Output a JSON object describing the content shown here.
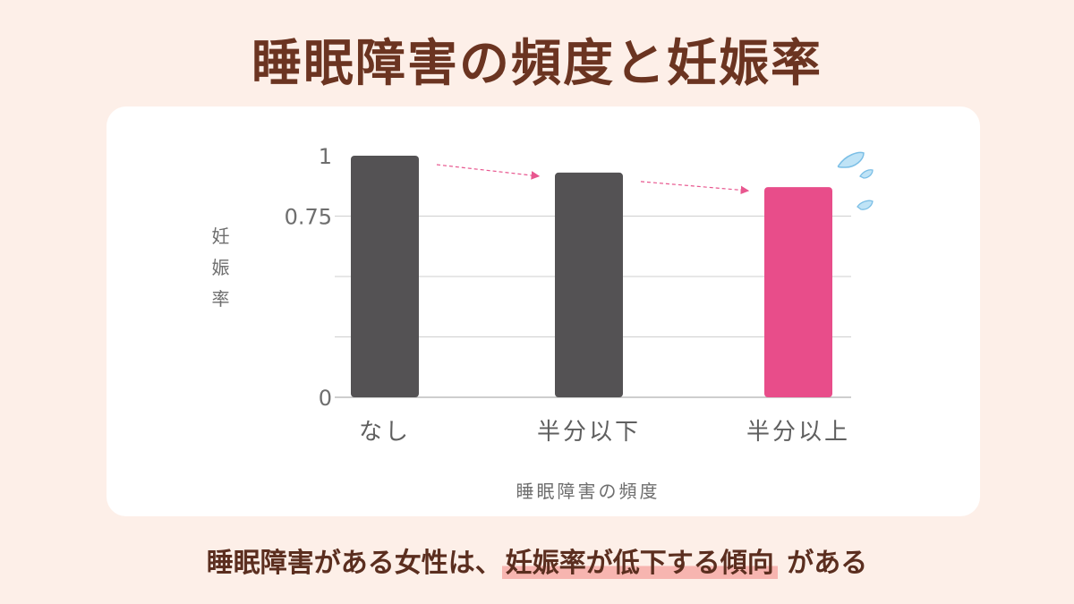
{
  "title": "睡眠障害の頻度と妊娠率",
  "chart_data": {
    "type": "bar",
    "categories": [
      "なし",
      "半分以下",
      "半分以上"
    ],
    "values": [
      1.0,
      0.93,
      0.87
    ],
    "ylabel": "妊娠率",
    "xlabel": "睡眠障害の頻度",
    "ylim": [
      0,
      1
    ],
    "yticks": [
      0,
      0.75,
      1
    ],
    "ytick_labels": [
      "0",
      "0.75",
      "1"
    ],
    "grid": true,
    "colors": [
      "#545254",
      "#545254",
      "#e84d8a"
    ]
  },
  "footer": {
    "text_before": "睡眠障害がある女性は、",
    "highlight": "妊娠率が低下する傾向",
    "text_after": "がある"
  }
}
